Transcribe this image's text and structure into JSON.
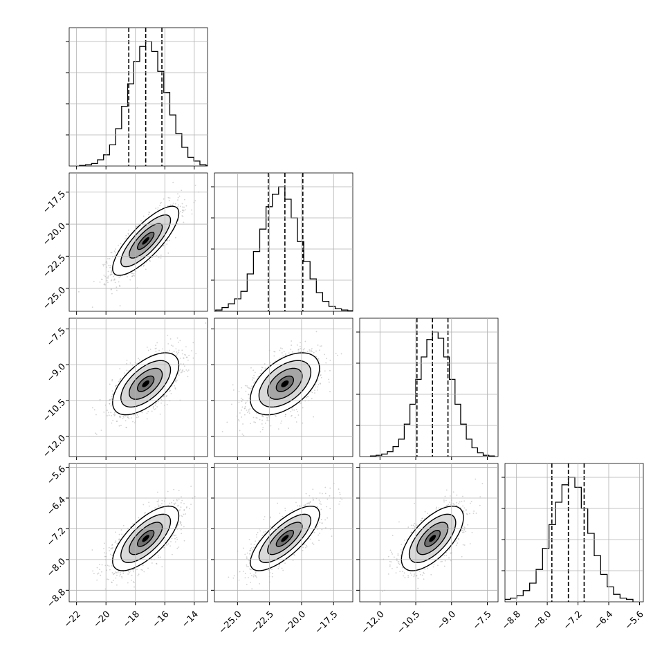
{
  "chart_data": {
    "type": "corner",
    "title": "",
    "parameters": 4,
    "grid": true,
    "colors": {
      "line": "#000000",
      "points": "#999999",
      "grid": "#b0b0b0",
      "background": "#ffffff"
    },
    "axes": [
      {
        "range": [
          -22.5,
          -13.1
        ],
        "median": -17.3,
        "quantiles": [
          -18.45,
          -17.3,
          -16.2
        ],
        "xticks": [
          -22,
          -20,
          -18,
          -16,
          -14
        ],
        "xtick_labels": [
          "−22",
          "−20",
          "−18",
          "−16",
          "−14"
        ],
        "hist_values": [
          0.005,
          0.01,
          0.02,
          0.05,
          0.09,
          0.17,
          0.3,
          0.48,
          0.66,
          0.84,
          0.96,
          1.0,
          0.92,
          0.76,
          0.59,
          0.41,
          0.26,
          0.15,
          0.07,
          0.04,
          0.01,
          0.005
        ]
      },
      {
        "range": [
          -26.8,
          -16.0
        ],
        "median": -21.3,
        "quantiles": [
          -22.6,
          -21.3,
          -19.9
        ],
        "xticks": [
          -25.0,
          -22.5,
          -20.0,
          -17.5
        ],
        "xtick_labels": [
          "−25.0",
          "−22.5",
          "−20.0",
          "−17.5"
        ],
        "yticks": [
          -25.0,
          -22.5,
          -20.0,
          -17.5
        ],
        "ytick_labels": [
          "−25.0",
          "−22.5",
          "−20.0",
          "−17.5"
        ],
        "hist_values": [
          0.01,
          0.03,
          0.06,
          0.1,
          0.16,
          0.3,
          0.48,
          0.66,
          0.84,
          0.94,
          1.0,
          0.9,
          0.75,
          0.56,
          0.4,
          0.26,
          0.15,
          0.08,
          0.04,
          0.02,
          0.01,
          0.005
        ]
      },
      {
        "range": [
          -12.85,
          -7.05
        ],
        "median": -9.8,
        "quantiles": [
          -10.45,
          -9.8,
          -9.15
        ],
        "xticks": [
          -12.0,
          -10.5,
          -9.0,
          -7.5
        ],
        "xtick_labels": [
          "−12.0",
          "−10.5",
          "−9.0",
          "−7.5"
        ],
        "yticks": [
          -12.0,
          -10.5,
          -9.0,
          -7.5
        ],
        "ytick_labels": [
          "−12.0",
          "−10.5",
          "−9.0",
          "−7.5"
        ],
        "hist_values": [
          0.005,
          0.01,
          0.02,
          0.04,
          0.08,
          0.14,
          0.26,
          0.42,
          0.62,
          0.8,
          0.94,
          1.0,
          0.95,
          0.8,
          0.62,
          0.42,
          0.26,
          0.14,
          0.07,
          0.03,
          0.01,
          0.005
        ]
      },
      {
        "range": [
          -9.1,
          -5.5
        ],
        "median": -7.45,
        "quantiles": [
          -7.88,
          -7.45,
          -7.04
        ],
        "xticks": [
          -8.8,
          -8.0,
          -7.2,
          -6.4,
          -5.6
        ],
        "xtick_labels": [
          "−8.8",
          "−8.0",
          "−7.2",
          "−6.4",
          "−5.6"
        ],
        "yticks": [
          -8.8,
          -8.0,
          -7.2,
          -6.4,
          -5.6
        ],
        "ytick_labels": [
          "−8.8",
          "−8.0",
          "−7.2",
          "−6.4",
          "−5.6"
        ],
        "hist_values": [
          0.02,
          0.03,
          0.05,
          0.09,
          0.15,
          0.26,
          0.43,
          0.62,
          0.8,
          0.94,
          1.0,
          0.92,
          0.75,
          0.55,
          0.37,
          0.22,
          0.12,
          0.06,
          0.03,
          0.02
        ]
      }
    ],
    "correlations": {
      "1-0": 0.8,
      "2-0": 0.6,
      "2-1": 0.5,
      "3-0": 0.7,
      "3-1": 0.75,
      "3-2": 0.65
    }
  }
}
